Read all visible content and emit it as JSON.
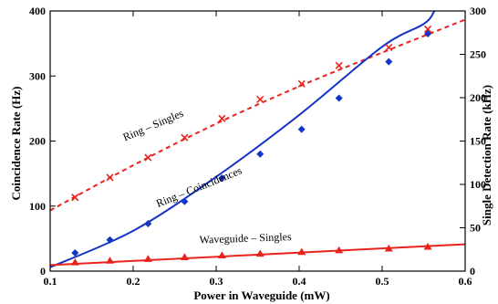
{
  "chart_data": {
    "type": "scatter",
    "xlabel": "Power in Waveguide (mW)",
    "ylabel": "Coincidence Rate (Hz)",
    "y2label": "Single Detection Rate (kHz)",
    "xlim": [
      0.1,
      0.6
    ],
    "ylim": [
      0,
      400
    ],
    "y2lim": [
      0,
      300
    ],
    "xticks": [
      0.1,
      0.2,
      0.3,
      0.4,
      0.5,
      0.6
    ],
    "yticks": [
      0,
      100,
      200,
      300,
      400
    ],
    "y2ticks": [
      0,
      50,
      100,
      150,
      200,
      250,
      300
    ],
    "grid": false,
    "series": [
      {
        "name": "Ring – Singles",
        "axis": "right",
        "color": "#e8231c",
        "marker": "x",
        "line": "dashed",
        "x": [
          0.13,
          0.172,
          0.218,
          0.262,
          0.307,
          0.353,
          0.403,
          0.448,
          0.508,
          0.555
        ],
        "y": [
          85,
          108,
          131,
          154,
          176,
          198,
          216,
          237,
          258,
          279
        ],
        "fit_x": [
          0.1,
          0.2,
          0.3,
          0.4,
          0.5,
          0.6
        ],
        "fit_y": [
          70,
          122,
          170,
          213,
          252,
          290
        ]
      },
      {
        "name": "Ring – Coincidences",
        "axis": "left",
        "color": "#1434c8",
        "marker": "diamond",
        "line": "solid",
        "x": [
          0.13,
          0.172,
          0.218,
          0.262,
          0.307,
          0.353,
          0.403,
          0.448,
          0.508,
          0.555
        ],
        "y": [
          28,
          48,
          73,
          107,
          143,
          180,
          218,
          266,
          322,
          365
        ],
        "fit_x": [
          0.1,
          0.2,
          0.3,
          0.4,
          0.5,
          0.55,
          0.563
        ],
        "fit_y": [
          6,
          62,
          145,
          240,
          345,
          380,
          400
        ]
      },
      {
        "name": "Waveguide – Singles",
        "axis": "right",
        "color": "#e8231c",
        "marker": "triangle",
        "line": "solid",
        "x": [
          0.13,
          0.172,
          0.218,
          0.262,
          0.307,
          0.353,
          0.403,
          0.448,
          0.508,
          0.555
        ],
        "y": [
          10,
          12,
          14,
          16,
          18,
          20,
          22,
          24,
          26,
          28
        ],
        "fit_x": [
          0.1,
          0.6
        ],
        "fit_y": [
          7,
          31
        ]
      }
    ]
  }
}
